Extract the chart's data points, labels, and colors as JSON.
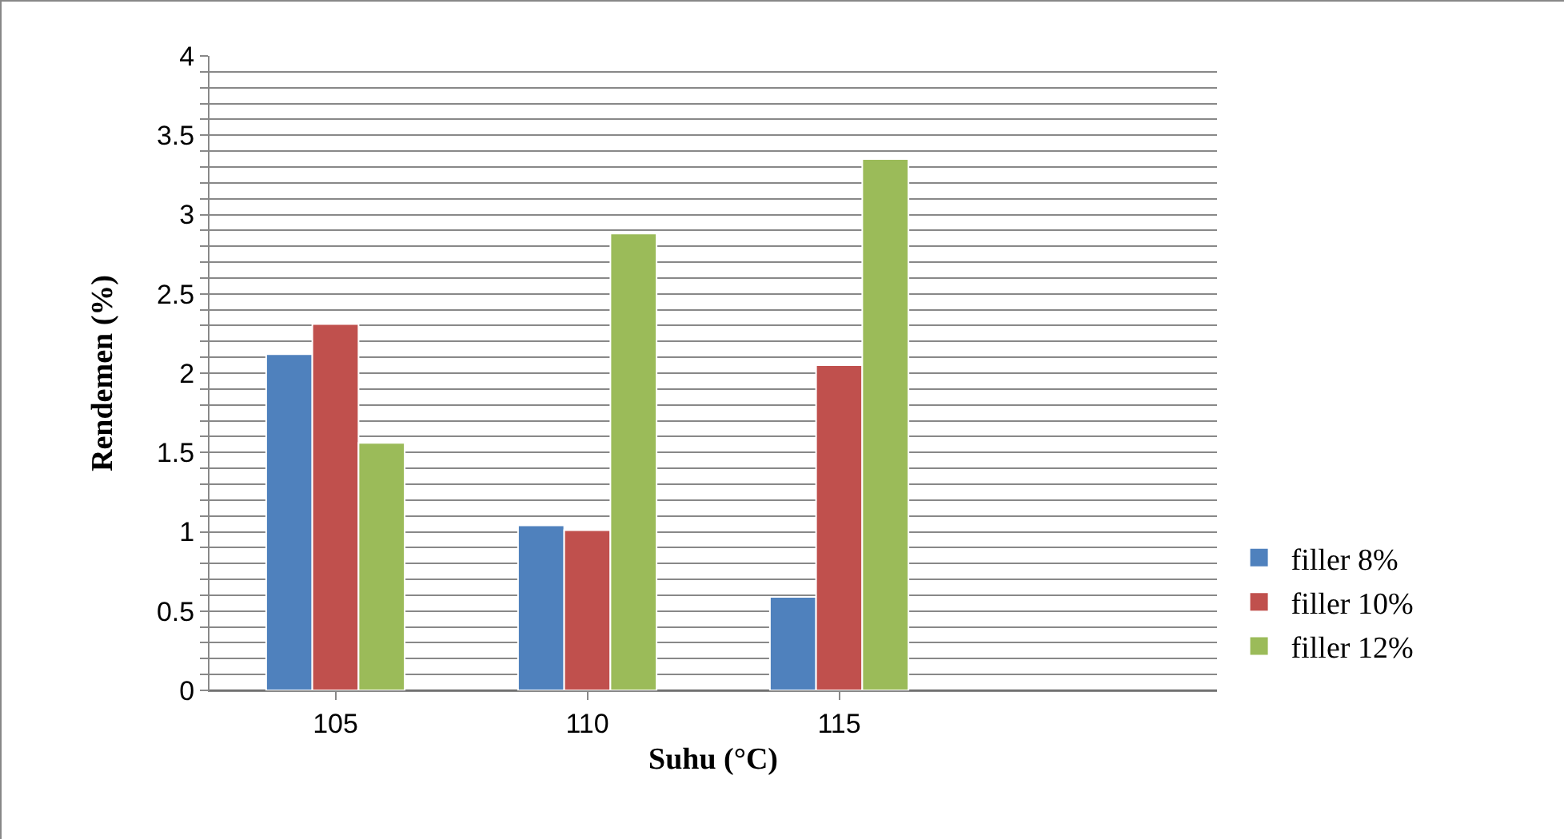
{
  "chart_data": {
    "type": "bar",
    "xlabel": "Suhu (°C)",
    "ylabel": "Rendemen (%)",
    "categories": [
      "105",
      "110",
      "115",
      null
    ],
    "series": [
      {
        "name": "filler 8%",
        "color": "#4f81bd",
        "values": [
          2.12,
          1.04,
          0.59,
          null
        ]
      },
      {
        "name": "filler 10%",
        "color": "#c0504d",
        "values": [
          2.31,
          1.01,
          2.05,
          null
        ]
      },
      {
        "name": "filler 12%",
        "color": "#9bbb59",
        "values": [
          1.56,
          2.88,
          3.35,
          null
        ]
      }
    ],
    "ylim": [
      0,
      4
    ],
    "yticks": [
      0,
      {
        "value": 0.1,
        "label": null
      },
      {
        "value": 0.2,
        "label": null
      },
      {
        "value": 0.3,
        "label": null
      },
      {
        "value": 0.4,
        "label": null
      },
      0.5,
      {
        "value": 0.6,
        "label": null
      },
      {
        "value": 0.7,
        "label": null
      },
      {
        "value": 0.8,
        "label": null
      },
      {
        "value": 0.9,
        "label": null
      },
      1,
      {
        "value": 1.1,
        "label": null
      },
      {
        "value": 1.2,
        "label": null
      },
      {
        "value": 1.3,
        "label": null
      },
      {
        "value": 1.4,
        "label": null
      },
      1.5,
      {
        "value": 1.6,
        "label": null
      },
      {
        "value": 1.7,
        "label": null
      },
      {
        "value": 1.8,
        "label": null
      },
      {
        "value": 1.9,
        "label": null
      },
      2,
      {
        "value": 2.1,
        "label": null
      },
      {
        "value": 2.2,
        "label": null
      },
      {
        "value": 2.3,
        "label": null
      },
      {
        "value": 2.4,
        "label": null
      },
      2.5,
      {
        "value": 2.6,
        "label": null
      },
      {
        "value": 2.7,
        "label": null
      },
      {
        "value": 2.8,
        "label": null
      },
      {
        "value": 2.9,
        "label": null
      },
      3,
      {
        "value": 3.1,
        "label": null
      },
      {
        "value": 3.2,
        "label": null
      },
      {
        "value": 3.3,
        "label": null
      },
      {
        "value": 3.4,
        "label": null
      },
      3.5,
      {
        "value": 3.6,
        "label": null
      },
      {
        "value": 3.7,
        "label": null
      },
      {
        "value": 3.8,
        "label": null
      },
      {
        "value": 3.9,
        "label": null
      },
      4
    ],
    "grid": "y",
    "legend": "right"
  }
}
